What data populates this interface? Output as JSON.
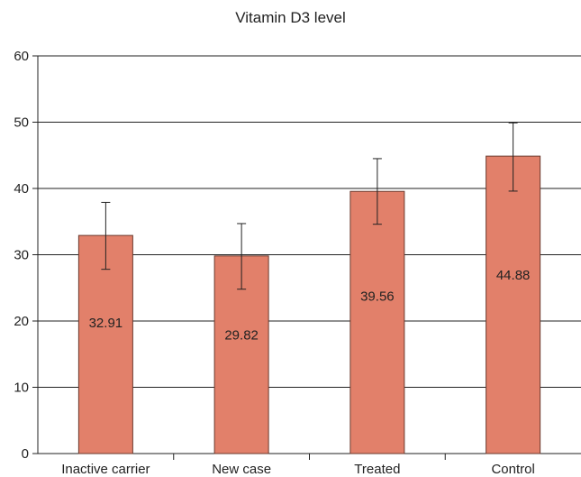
{
  "chart_data": {
    "type": "bar",
    "title": "Vitamin D3 level",
    "xlabel": "",
    "ylabel": "",
    "ylim": [
      0,
      60
    ],
    "yticks": [
      0,
      10,
      20,
      30,
      40,
      50,
      60
    ],
    "grid": true,
    "categories": [
      "Inactive carrier",
      "New case",
      "Treated",
      "Control"
    ],
    "values": [
      32.91,
      29.82,
      39.56,
      44.88
    ],
    "data_labels": [
      "32.91",
      "29.82",
      "39.56",
      "44.88"
    ],
    "error_bars": [
      {
        "low": 27.8,
        "high": 37.9
      },
      {
        "low": 24.8,
        "high": 34.7
      },
      {
        "low": 34.6,
        "high": 44.5
      },
      {
        "low": 39.6,
        "high": 49.9
      }
    ],
    "colors": {
      "bar": "#e2806a",
      "bar_stroke": "#6b3a2e",
      "axis": "#222222",
      "grid": "#222222"
    }
  }
}
